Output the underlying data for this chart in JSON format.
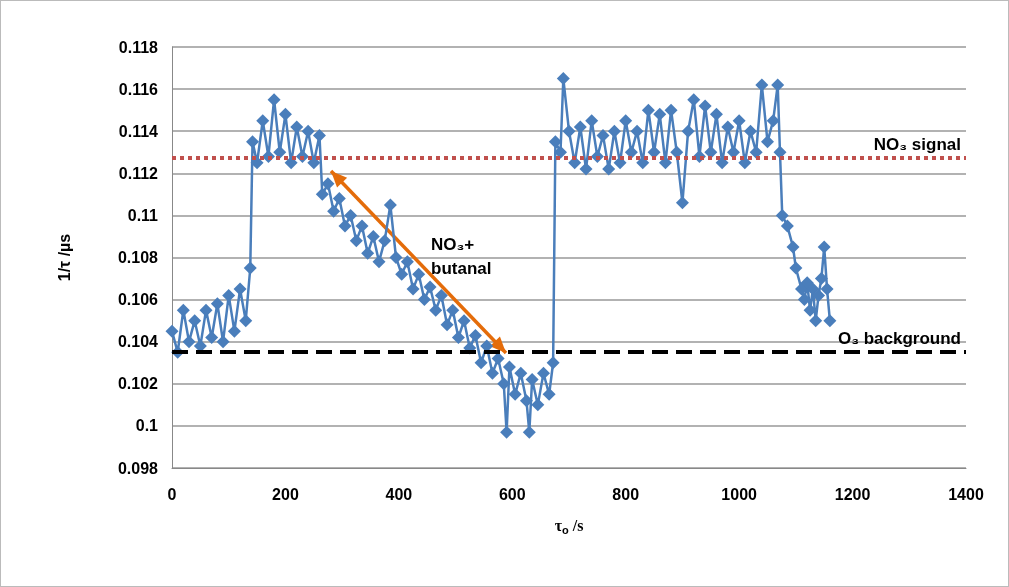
{
  "chart_data": {
    "type": "line",
    "xlabel": "τ$_{o}$ /s",
    "ylabel": "1/τ /µs",
    "xlim": [
      0,
      1400
    ],
    "xticks": [
      0,
      200,
      400,
      600,
      800,
      1000,
      1200,
      1400
    ],
    "ylim": [
      0.098,
      0.118
    ],
    "yticks": [
      0.098,
      0.1,
      0.102,
      0.104,
      0.106,
      0.108,
      0.11,
      0.112,
      0.114,
      0.116,
      0.118
    ],
    "grid": "y",
    "marker": "diamond",
    "line_style": "solid",
    "x": [
      0,
      10,
      20,
      30,
      40,
      50,
      60,
      70,
      80,
      90,
      100,
      110,
      120,
      130,
      138,
      142,
      150,
      160,
      170,
      180,
      190,
      200,
      210,
      220,
      230,
      240,
      250,
      260,
      265,
      275,
      285,
      295,
      305,
      315,
      325,
      335,
      345,
      355,
      365,
      375,
      385,
      395,
      405,
      415,
      425,
      435,
      445,
      455,
      465,
      475,
      485,
      495,
      505,
      515,
      525,
      535,
      545,
      555,
      565,
      575,
      585,
      590,
      595,
      605,
      615,
      625,
      630,
      635,
      645,
      655,
      665,
      672,
      676,
      685,
      690,
      700,
      710,
      720,
      730,
      740,
      750,
      760,
      770,
      780,
      790,
      800,
      810,
      820,
      830,
      840,
      850,
      860,
      870,
      880,
      890,
      900,
      910,
      920,
      930,
      940,
      950,
      960,
      970,
      980,
      990,
      1000,
      1010,
      1020,
      1030,
      1040,
      1050,
      1060,
      1068,
      1072,
      1076,
      1085,
      1095,
      1100,
      1110,
      1115,
      1120,
      1125,
      1130,
      1135,
      1140,
      1145,
      1150,
      1155,
      1160
    ],
    "series": [
      {
        "color": "#4a7ebb",
        "values": [
          0.1045,
          0.1035,
          0.1055,
          0.104,
          0.105,
          0.1038,
          0.1055,
          0.1042,
          0.1058,
          0.104,
          0.1062,
          0.1045,
          0.1065,
          0.105,
          0.1075,
          0.1135,
          0.1125,
          0.1145,
          0.1128,
          0.1155,
          0.113,
          0.1148,
          0.1125,
          0.1142,
          0.1128,
          0.114,
          0.1125,
          0.1138,
          0.111,
          0.1115,
          0.1102,
          0.1108,
          0.1095,
          0.11,
          0.1088,
          0.1095,
          0.1082,
          0.109,
          0.1078,
          0.1088,
          0.1105,
          0.108,
          0.1072,
          0.1078,
          0.1065,
          0.1072,
          0.106,
          0.1066,
          0.1055,
          0.1062,
          0.1048,
          0.1055,
          0.1042,
          0.105,
          0.1037,
          0.1043,
          0.103,
          0.1038,
          0.1025,
          0.1032,
          0.102,
          0.0997,
          0.1028,
          0.1015,
          0.1025,
          0.1012,
          0.0997,
          0.1022,
          0.101,
          0.1025,
          0.1015,
          0.103,
          0.1135,
          0.113,
          0.1165,
          0.114,
          0.1125,
          0.1142,
          0.1122,
          0.1145,
          0.1128,
          0.1138,
          0.1122,
          0.114,
          0.1125,
          0.1145,
          0.113,
          0.114,
          0.1125,
          0.115,
          0.113,
          0.1148,
          0.1125,
          0.115,
          0.113,
          0.1106,
          0.114,
          0.1155,
          0.1128,
          0.1152,
          0.113,
          0.1148,
          0.1125,
          0.1142,
          0.113,
          0.1145,
          0.1125,
          0.114,
          0.113,
          0.1162,
          0.1135,
          0.1145,
          0.1162,
          0.113,
          0.11,
          0.1095,
          0.1085,
          0.1075,
          0.1065,
          0.106,
          0.1068,
          0.1055,
          0.1065,
          0.105,
          0.1062,
          0.107,
          0.1085,
          0.1065,
          0.105
        ]
      }
    ],
    "ref_lines": [
      {
        "axis": "y",
        "value": 0.11275,
        "label": "NO₃ signal",
        "color": "#c0504d",
        "line_style": "dotted"
      },
      {
        "axis": "y",
        "value": 0.1035,
        "label": "O₃ background",
        "color": "#000000",
        "line_style": "dashed"
      }
    ],
    "annotations": [
      "NO₃+ butanal"
    ]
  }
}
